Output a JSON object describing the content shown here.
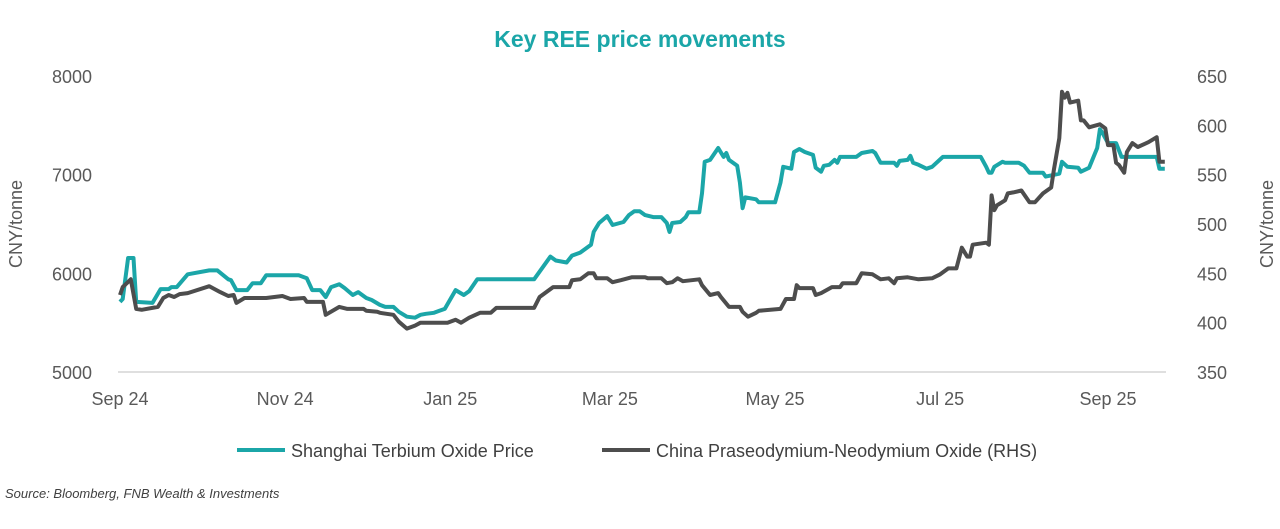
{
  "chart_data": {
    "type": "line",
    "title": "Key REE price movements",
    "x_unit": "days since 2024-09-01",
    "x_ticks": [
      {
        "label": "Sep 24",
        "day": 0
      },
      {
        "label": "Nov 24",
        "day": 61
      },
      {
        "label": "Jan 25",
        "day": 122
      },
      {
        "label": "Mar 25",
        "day": 181
      },
      {
        "label": "May 25",
        "day": 242
      },
      {
        "label": "Jul 25",
        "day": 303
      },
      {
        "label": "Sep 25",
        "day": 365
      }
    ],
    "xlim": [
      0,
      386
    ],
    "ylabel_left": "CNY/tonne",
    "ylabel_right": "CNY/tonne",
    "ylim_left": [
      5000,
      8000
    ],
    "yticks_left": [
      "5000",
      "6000",
      "7000",
      "8000"
    ],
    "ylim_right": [
      350,
      650
    ],
    "yticks_right": [
      "350",
      "400",
      "450",
      "500",
      "550",
      "600",
      "650"
    ],
    "legend_position": "bottom",
    "series": [
      {
        "name": "Shanghai Terbium Oxide Price",
        "axis": "left",
        "color": "#1ba6a8",
        "x": [
          0,
          1,
          3,
          5,
          6,
          12,
          15,
          18,
          19,
          21,
          25,
          33,
          36,
          40,
          41,
          43,
          47,
          49,
          52,
          54,
          66,
          69,
          71,
          74,
          76,
          78,
          81,
          83,
          86,
          88,
          91,
          93,
          96,
          98,
          101,
          103,
          106,
          109,
          111,
          113,
          116,
          118,
          120,
          124,
          127,
          129,
          132,
          153,
          159,
          161,
          165,
          167,
          170,
          174,
          175,
          177,
          180,
          182,
          186,
          188,
          190,
          192,
          194,
          197,
          200,
          202,
          203,
          204,
          207,
          209,
          210,
          214,
          215,
          216,
          218,
          221,
          223,
          224,
          225,
          228,
          229,
          230,
          231,
          235,
          236,
          242,
          244,
          245,
          248,
          249,
          251,
          253,
          256,
          257,
          259,
          260,
          262,
          264,
          265,
          266,
          272,
          274,
          278,
          279,
          281,
          286,
          287,
          288,
          291,
          292,
          293,
          295,
          298,
          300,
          304,
          318,
          320,
          321,
          322,
          323,
          326,
          327,
          332,
          334,
          336,
          341,
          342,
          347,
          348,
          350,
          354,
          355,
          358,
          361,
          362,
          363,
          365,
          368,
          370,
          383,
          384,
          386
        ],
        "y": [
          5710,
          5740,
          6155,
          6155,
          5710,
          5700,
          5840,
          5840,
          5860,
          5860,
          5990,
          6030,
          6030,
          5940,
          5930,
          5830,
          5830,
          5900,
          5900,
          5980,
          5980,
          5950,
          5830,
          5830,
          5760,
          5860,
          5890,
          5850,
          5780,
          5810,
          5750,
          5730,
          5680,
          5660,
          5660,
          5610,
          5560,
          5550,
          5580,
          5590,
          5600,
          5620,
          5640,
          5830,
          5780,
          5820,
          5940,
          5940,
          6170,
          6130,
          6110,
          6180,
          6210,
          6290,
          6420,
          6510,
          6580,
          6490,
          6520,
          6590,
          6630,
          6630,
          6590,
          6570,
          6570,
          6510,
          6420,
          6510,
          6520,
          6570,
          6620,
          6620,
          6810,
          7130,
          7150,
          7270,
          7180,
          7220,
          7150,
          7090,
          6920,
          6660,
          6770,
          6750,
          6720,
          6720,
          6920,
          7080,
          7060,
          7230,
          7260,
          7230,
          7200,
          7070,
          7030,
          7090,
          7100,
          7150,
          7120,
          7180,
          7180,
          7220,
          7240,
          7220,
          7120,
          7120,
          7090,
          7140,
          7150,
          7190,
          7120,
          7100,
          7060,
          7080,
          7180,
          7180,
          7080,
          7020,
          7020,
          7080,
          7130,
          7120,
          7120,
          7090,
          7020,
          7020,
          6980,
          7010,
          7130,
          7080,
          7070,
          7030,
          7070,
          7270,
          7460,
          7420,
          7320,
          7320,
          7180,
          7180,
          7060,
          7060
        ]
      },
      {
        "name": "China Praseodymium-Neodymium Oxide (RHS)",
        "axis": "right",
        "color": "#4d4d4d",
        "x": [
          0,
          1,
          4,
          6,
          8,
          14,
          16,
          18,
          20,
          22,
          25,
          33,
          37,
          40,
          42,
          43,
          46,
          54,
          60,
          63,
          68,
          69,
          75,
          76,
          81,
          84,
          90,
          91,
          95,
          96,
          101,
          103,
          106,
          109,
          111,
          121,
          124,
          126,
          129,
          133,
          137,
          139,
          153,
          155,
          160,
          166,
          167,
          170,
          173,
          175,
          176,
          177,
          180,
          182,
          185,
          189,
          194,
          195,
          200,
          202,
          204,
          206,
          208,
          214,
          215,
          218,
          221,
          222,
          225,
          229,
          230,
          232,
          235,
          236,
          244,
          246,
          249,
          250,
          251,
          256,
          257,
          259,
          263,
          266,
          267,
          272,
          274,
          278,
          281,
          284,
          286,
          287,
          291,
          295,
          300,
          303,
          306,
          309,
          311,
          313,
          314,
          315,
          320,
          321,
          322,
          323,
          324,
          327,
          328,
          330,
          333,
          336,
          338,
          341,
          344,
          345,
          347,
          348,
          349,
          350,
          351,
          354,
          355,
          356,
          358,
          362,
          364,
          365,
          367,
          368,
          369,
          371,
          372,
          374,
          376,
          380,
          383,
          384,
          386
        ],
        "y": [
          428,
          436,
          444,
          414,
          413,
          416,
          425,
          428,
          426,
          429,
          430,
          437,
          431,
          427,
          428,
          420,
          425,
          425,
          427,
          424,
          425,
          421,
          421,
          408,
          416,
          414,
          414,
          412,
          411,
          410,
          408,
          401,
          394,
          397,
          400,
          400,
          403,
          400,
          405,
          410,
          410,
          415,
          415,
          426,
          436,
          436,
          443,
          444,
          450,
          450,
          445,
          445,
          445,
          441,
          443,
          446,
          446,
          445,
          445,
          440,
          441,
          445,
          442,
          444,
          438,
          428,
          430,
          426,
          416,
          416,
          411,
          406,
          410,
          412,
          414,
          424,
          424,
          438,
          435,
          435,
          428,
          430,
          436,
          436,
          440,
          440,
          450,
          449,
          444,
          445,
          440,
          445,
          446,
          444,
          445,
          449,
          455,
          455,
          476,
          467,
          467,
          479,
          481,
          479,
          529,
          514,
          519,
          524,
          531,
          532,
          534,
          522,
          522,
          531,
          537,
          555,
          587,
          634,
          628,
          633,
          623,
          625,
          605,
          605,
          598,
          601,
          597,
          580,
          580,
          562,
          560,
          552,
          573,
          582,
          578,
          583,
          588,
          563,
          563
        ]
      }
    ],
    "source": "Source: Bloomberg, FNB Wealth & Investments"
  }
}
